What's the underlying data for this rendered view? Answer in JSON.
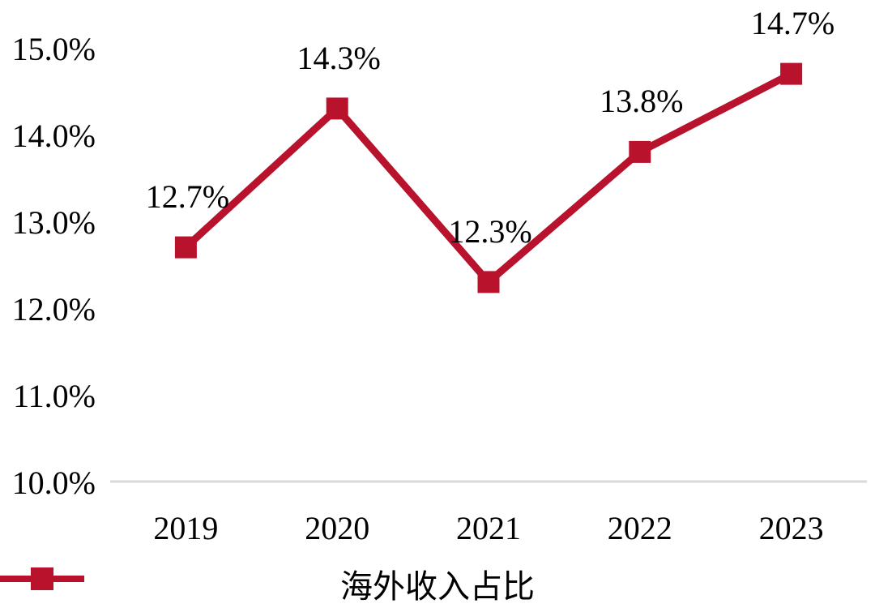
{
  "chart_data": {
    "type": "line",
    "categories": [
      "2019",
      "2020",
      "2021",
      "2022",
      "2023"
    ],
    "series": [
      {
        "name": "海外收入占比",
        "values": [
          12.7,
          14.3,
          12.3,
          13.8,
          14.7
        ],
        "marker": "square"
      }
    ],
    "data_labels": [
      "12.7%",
      "14.3%",
      "12.3%",
      "13.8%",
      "14.7%"
    ],
    "y_axis": {
      "tick_labels": [
        "15.0%",
        "14.0%",
        "13.0%",
        "12.0%",
        "11.0%",
        "10.0%"
      ],
      "min": 10.0,
      "max": 15.0
    },
    "x_axis": {
      "tick_labels": [
        "2019",
        "2020",
        "2021",
        "2022",
        "2023"
      ]
    },
    "legend": {
      "label": "海外收入占比",
      "position": "bottom"
    },
    "grid": false,
    "colors": {
      "series": "#B8122D",
      "axis_line": "#D9D9D9",
      "text": "#000000",
      "background": "#FFFFFF"
    }
  }
}
